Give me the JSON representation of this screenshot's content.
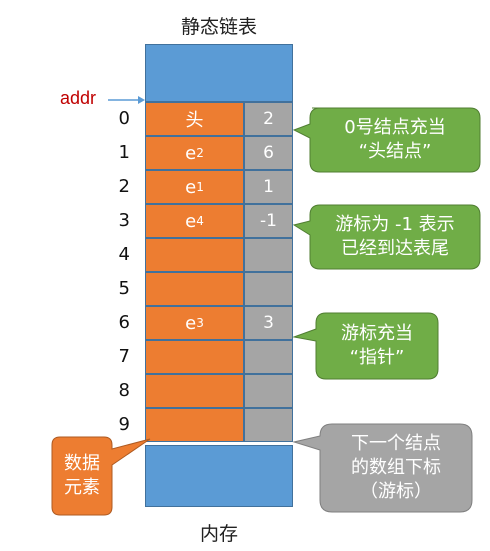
{
  "title": "静态链表",
  "footer": "内存",
  "addr_label": "addr",
  "rows": [
    {
      "index": "0",
      "data": "头",
      "data_sub": "",
      "cursor": "2"
    },
    {
      "index": "1",
      "data": "e",
      "data_sub": "2",
      "cursor": "6"
    },
    {
      "index": "2",
      "data": "e",
      "data_sub": "1",
      "cursor": "1"
    },
    {
      "index": "3",
      "data": "e",
      "data_sub": "4",
      "cursor": "-1"
    },
    {
      "index": "4",
      "data": "",
      "data_sub": "",
      "cursor": ""
    },
    {
      "index": "5",
      "data": "",
      "data_sub": "",
      "cursor": ""
    },
    {
      "index": "6",
      "data": "e",
      "data_sub": "3",
      "cursor": "3"
    },
    {
      "index": "7",
      "data": "",
      "data_sub": "",
      "cursor": ""
    },
    {
      "index": "8",
      "data": "",
      "data_sub": "",
      "cursor": ""
    },
    {
      "index": "9",
      "data": "",
      "data_sub": "",
      "cursor": ""
    }
  ],
  "callouts": {
    "head_node": {
      "line1": "0号结点充当",
      "line2": "“头结点”",
      "color": "#70ad47"
    },
    "end_marker": {
      "line1": "游标为 -1 表示",
      "line2": "已经到达表尾",
      "color": "#70ad47"
    },
    "cursor_pointer": {
      "line1": "游标充当",
      "line2": "“指针”",
      "color": "#70ad47"
    },
    "next_index": {
      "line1": "下一个结点",
      "line2": "的数组下标",
      "line3": "（游标）",
      "color": "#a5a5a5"
    },
    "data_element": {
      "line1": "数据",
      "line2": "元素",
      "color": "#ed7d31"
    }
  },
  "colors": {
    "memory": "#5b9bd5",
    "data_cell": "#ed7d31",
    "cursor_cell": "#a5a5a5",
    "addr": "#c00000"
  }
}
